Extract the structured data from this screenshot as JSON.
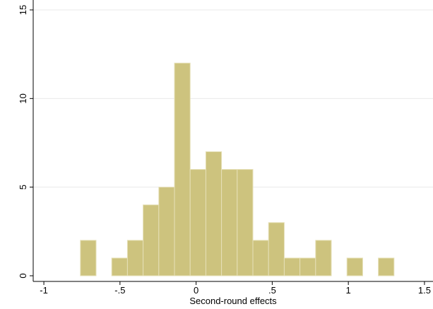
{
  "chart_data": {
    "type": "histogram",
    "x_label": "Second-round effects",
    "bins": [
      -0.76,
      -0.657,
      -0.554,
      -0.451,
      -0.348,
      -0.245,
      -0.142,
      -0.039,
      0.064,
      0.167,
      0.27,
      0.373,
      0.476,
      0.579,
      0.682,
      0.785,
      0.888,
      0.991,
      1.094,
      1.197,
      1.3
    ],
    "values": [
      2,
      0,
      1,
      2,
      4,
      5,
      12,
      6,
      7,
      6,
      6,
      2,
      3,
      1,
      1,
      2,
      0,
      1,
      0,
      1
    ],
    "color": "#cdc37e",
    "xlim": [
      -1.07,
      1.556
    ],
    "xticks": [
      {
        "value": -1,
        "label": "-1"
      },
      {
        "value": -0.5,
        "label": "-.5"
      },
      0,
      {
        "value": 0.5,
        "label": ".5"
      },
      1,
      1.5
    ],
    "ylim": [
      0,
      15
    ],
    "yticks": [
      0,
      5,
      10,
      15
    ],
    "grid": true
  }
}
